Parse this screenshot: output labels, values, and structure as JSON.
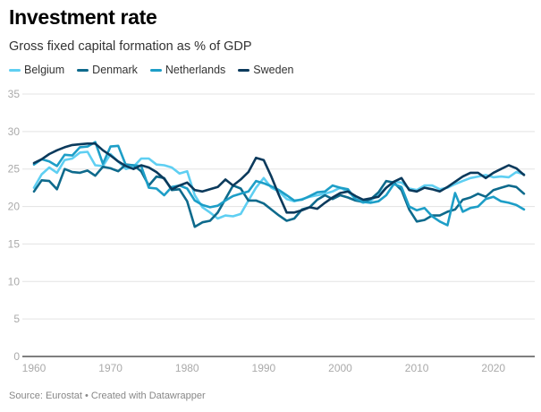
{
  "chart_data": {
    "type": "line",
    "title": "Investment rate",
    "subtitle": "Gross fixed capital formation as % of GDP",
    "xlabel": "",
    "ylabel": "",
    "xlim": [
      1960,
      2024
    ],
    "ylim": [
      0,
      35
    ],
    "yticks": [
      "0",
      "5",
      "10",
      "15",
      "20",
      "25",
      "30",
      "35"
    ],
    "xticks": [
      "1960",
      "1970",
      "1980",
      "1990",
      "2000",
      "2010",
      "2020"
    ],
    "grid": true,
    "legend_placement": "top-left",
    "x_start": 1960,
    "series": [
      {
        "name": "Belgium",
        "color": "#5fcff2",
        "values": [
          22.5,
          24.3,
          25.2,
          24.5,
          26.2,
          26.4,
          27.2,
          27.3,
          25.5,
          25.4,
          27.0,
          26.0,
          25.0,
          25.3,
          26.4,
          26.4,
          25.6,
          25.5,
          25.2,
          24.4,
          24.7,
          21.5,
          19.9,
          19.2,
          18.4,
          18.8,
          18.7,
          19.0,
          20.8,
          22.5,
          23.8,
          22.5,
          22.0,
          21.0,
          20.7,
          21.0,
          21.3,
          21.5,
          21.7,
          22.0,
          22.5,
          22.0,
          21.0,
          20.5,
          20.8,
          21.6,
          22.5,
          23.3,
          23.2,
          22.4,
          22.2,
          22.8,
          22.8,
          22.3,
          22.5,
          23.0,
          23.4,
          23.8,
          24.0,
          24.2,
          23.9,
          24.0,
          23.9,
          24.6,
          24.3
        ]
      },
      {
        "name": "Denmark",
        "color": "#0e6a8c",
        "values": [
          22.0,
          23.5,
          23.4,
          22.3,
          25.0,
          24.6,
          24.5,
          24.8,
          24.1,
          25.3,
          25.1,
          24.7,
          25.6,
          25.5,
          24.7,
          22.8,
          24.0,
          23.8,
          22.2,
          22.3,
          20.7,
          17.3,
          17.9,
          18.1,
          19.2,
          21.0,
          22.8,
          22.4,
          20.8,
          20.8,
          20.4,
          19.6,
          18.8,
          18.1,
          18.4,
          19.6,
          19.9,
          20.9,
          21.5,
          21.0,
          21.5,
          21.2,
          20.8,
          20.6,
          21.0,
          21.9,
          23.4,
          23.2,
          22.2,
          19.6,
          18.0,
          18.2,
          18.8,
          18.8,
          19.3,
          19.6,
          20.9,
          21.2,
          21.7,
          21.3,
          22.2,
          22.5,
          22.8,
          22.6,
          21.7
        ]
      },
      {
        "name": "Netherlands",
        "color": "#1d9ec7",
        "values": [
          25.6,
          26.3,
          26.0,
          25.4,
          26.9,
          26.8,
          27.9,
          28.0,
          28.6,
          25.7,
          28.0,
          28.1,
          25.5,
          25.5,
          25.4,
          22.5,
          22.4,
          21.5,
          22.6,
          22.8,
          22.4,
          20.8,
          20.2,
          19.9,
          20.1,
          20.8,
          21.4,
          21.7,
          22.0,
          23.4,
          23.1,
          22.7,
          22.2,
          21.5,
          20.8,
          20.9,
          21.4,
          21.9,
          22.0,
          22.8,
          22.5,
          22.3,
          21.0,
          20.6,
          20.5,
          20.7,
          21.5,
          23.0,
          22.6,
          20.0,
          19.5,
          19.8,
          18.7,
          18.0,
          17.5,
          21.8,
          19.3,
          19.8,
          20.0,
          21.0,
          21.3,
          20.7,
          20.5,
          20.2,
          19.6
        ]
      },
      {
        "name": "Sweden",
        "color": "#0b3a5c",
        "values": [
          25.8,
          26.3,
          27.0,
          27.5,
          27.9,
          28.2,
          28.3,
          28.4,
          28.4,
          27.5,
          26.8,
          26.0,
          25.4,
          25.0,
          25.5,
          25.2,
          24.6,
          23.7,
          22.3,
          22.8,
          23.2,
          22.2,
          22.0,
          22.3,
          22.6,
          23.6,
          22.8,
          23.6,
          24.6,
          26.5,
          26.2,
          24.0,
          21.5,
          19.2,
          19.2,
          19.5,
          19.9,
          19.7,
          20.5,
          21.2,
          21.8,
          22.0,
          21.4,
          20.9,
          21.1,
          21.3,
          22.5,
          23.3,
          23.8,
          22.2,
          22.0,
          22.5,
          22.3,
          22.0,
          22.6,
          23.3,
          24.0,
          24.5,
          24.5,
          23.8,
          24.5,
          25.0,
          25.5,
          25.1,
          24.2
        ]
      }
    ],
    "source": "Source: Eurostat • Created with Datawrapper"
  }
}
